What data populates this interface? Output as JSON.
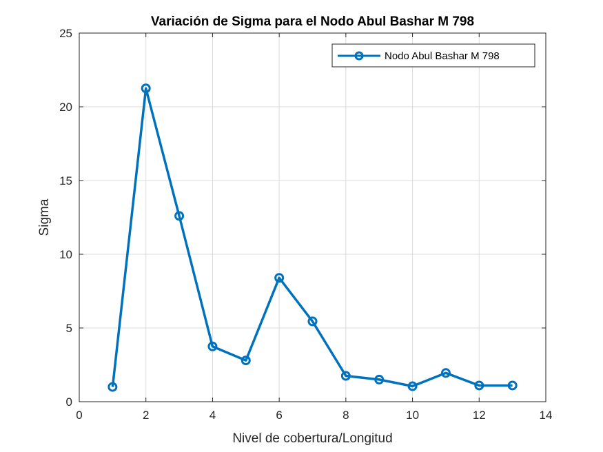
{
  "chart_data": {
    "type": "line",
    "title": "Variación de Sigma para el Nodo Abul Bashar M 798",
    "xlabel": "Nivel de cobertura/Longitud",
    "ylabel": "Sigma",
    "xlim": [
      0,
      14
    ],
    "ylim": [
      0,
      25
    ],
    "xticks": [
      0,
      2,
      4,
      6,
      8,
      10,
      12,
      14
    ],
    "yticks": [
      0,
      5,
      10,
      15,
      20,
      25
    ],
    "grid": true,
    "legend_position": "top-right",
    "series": [
      {
        "name": "Nodo Abul Bashar M 798",
        "color": "#0072BD",
        "marker": "circle",
        "x": [
          1,
          2,
          3,
          4,
          5,
          6,
          7,
          8,
          9,
          10,
          11,
          12,
          13
        ],
        "y": [
          1.0,
          21.25,
          12.6,
          3.75,
          2.8,
          8.4,
          5.45,
          1.75,
          1.5,
          1.05,
          1.95,
          1.1,
          1.1
        ]
      }
    ]
  }
}
